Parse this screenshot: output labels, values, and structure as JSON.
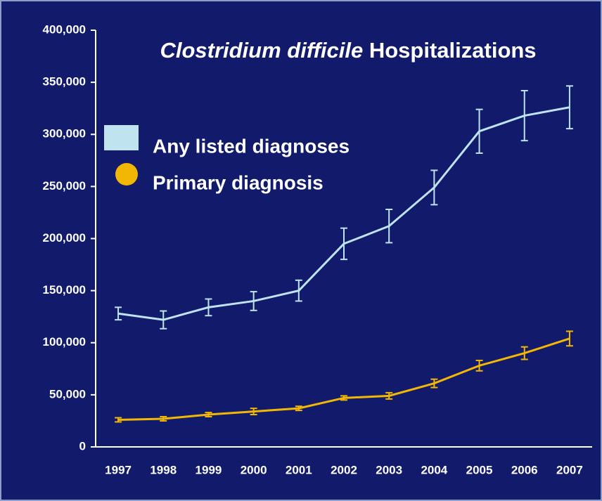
{
  "chart_data": {
    "type": "line",
    "title": {
      "italic": "Clostridium difficile",
      "rest": "Hospitalizations"
    },
    "categories": [
      "1997",
      "1998",
      "1999",
      "2000",
      "2001",
      "2002",
      "2003",
      "2004",
      "2005",
      "2006",
      "2007"
    ],
    "series": [
      {
        "name": "Any listed diagnoses",
        "color": "#bfe3ef",
        "marker": "square",
        "values": [
          128000,
          122000,
          134000,
          140000,
          150000,
          195000,
          212000,
          249000,
          303000,
          318000,
          326000
        ],
        "errors": [
          6000,
          8500,
          8000,
          9000,
          10000,
          15000,
          16000,
          16500,
          21000,
          24000,
          20500
        ]
      },
      {
        "name": "Primary diagnosis",
        "color": "#f2b705",
        "marker": "circle",
        "values": [
          26000,
          27000,
          31000,
          34000,
          37000,
          47000,
          49000,
          61000,
          78000,
          90000,
          104000
        ],
        "errors": [
          2000,
          2000,
          2000,
          3000,
          2000,
          2000,
          3000,
          4000,
          5000,
          6000,
          7000
        ]
      }
    ],
    "ylim": [
      0,
      400000
    ],
    "yticks": [
      0,
      {
        "value": 50000,
        "label": "50,000"
      },
      {
        "value": 100000,
        "label": "100,000"
      },
      {
        "value": 150000,
        "label": "150,000"
      },
      {
        "value": 200000,
        "label": "200,000"
      },
      {
        "value": 250000,
        "label": "250,000"
      },
      {
        "value": 300000,
        "label": "300,000"
      },
      {
        "value": 350000,
        "label": "350,000"
      },
      {
        "value": 400000,
        "label": "400,000"
      }
    ],
    "background": "#111a6b",
    "grid": false
  }
}
